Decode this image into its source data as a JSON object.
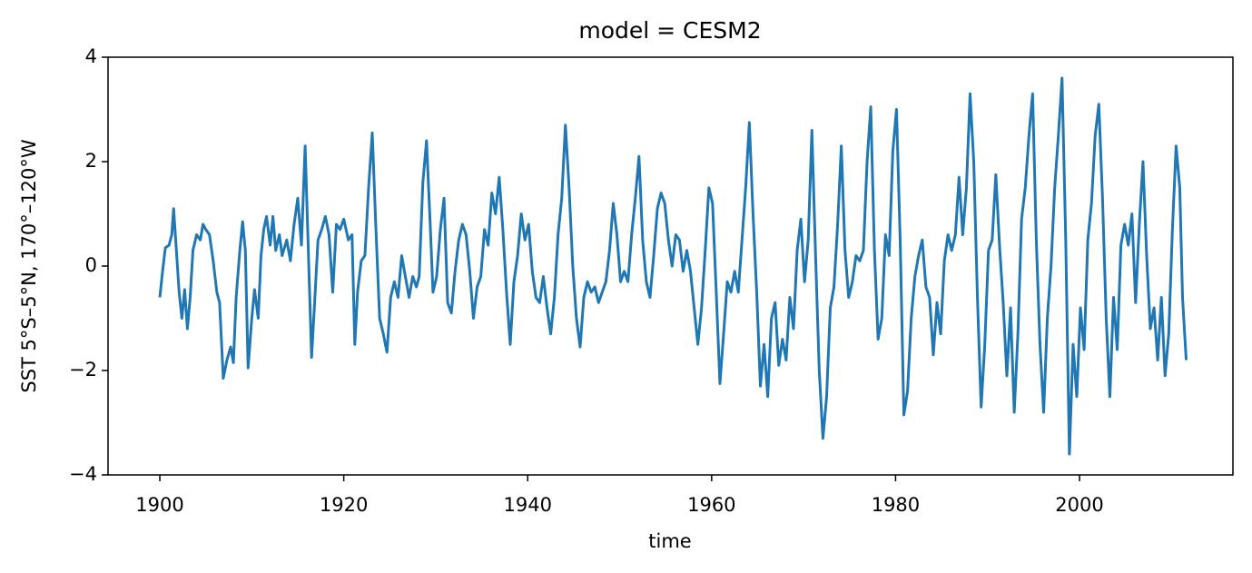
{
  "chart_data": {
    "type": "line",
    "title": "model = CESM2",
    "xlabel": "time",
    "ylabel": "SST 5°S–5°N, 170°–120°W",
    "color": "#1f77b4",
    "x": [
      1900.0,
      1900.3,
      1900.6,
      1901.0,
      1901.3,
      1901.5,
      1901.8,
      1902.1,
      1902.4,
      1902.7,
      1903.0,
      1903.3,
      1903.6,
      1904.0,
      1904.4,
      1904.7,
      1905.0,
      1905.4,
      1905.8,
      1906.2,
      1906.5,
      1906.9,
      1907.3,
      1907.7,
      1908.0,
      1908.3,
      1908.7,
      1909.0,
      1909.3,
      1909.6,
      1910.0,
      1910.3,
      1910.7,
      1911.0,
      1911.3,
      1911.6,
      1912.0,
      1912.3,
      1912.6,
      1913.0,
      1913.3,
      1913.8,
      1914.2,
      1914.6,
      1915.0,
      1915.4,
      1915.8,
      1916.2,
      1916.5,
      1916.8,
      1917.2,
      1917.6,
      1918.0,
      1918.4,
      1918.8,
      1919.2,
      1919.6,
      1920.0,
      1920.5,
      1920.9,
      1921.2,
      1921.5,
      1921.9,
      1922.3,
      1922.7,
      1923.1,
      1923.5,
      1923.9,
      1924.3,
      1924.7,
      1925.1,
      1925.5,
      1925.9,
      1926.3,
      1926.7,
      1927.1,
      1927.5,
      1927.9,
      1928.2,
      1928.6,
      1929.0,
      1929.4,
      1929.7,
      1930.1,
      1930.5,
      1930.9,
      1931.3,
      1931.7,
      1932.1,
      1932.5,
      1932.9,
      1933.3,
      1933.7,
      1934.1,
      1934.5,
      1934.9,
      1935.3,
      1935.7,
      1936.1,
      1936.5,
      1936.9,
      1937.3,
      1937.7,
      1938.1,
      1938.5,
      1938.9,
      1939.3,
      1939.7,
      1940.1,
      1940.5,
      1940.9,
      1941.3,
      1941.7,
      1942.1,
      1942.5,
      1942.9,
      1943.3,
      1943.7,
      1944.1,
      1944.5,
      1944.9,
      1945.3,
      1945.7,
      1946.1,
      1946.5,
      1946.9,
      1947.3,
      1947.7,
      1948.1,
      1948.5,
      1948.9,
      1949.3,
      1949.7,
      1950.1,
      1950.5,
      1950.9,
      1951.3,
      1951.7,
      1952.1,
      1952.5,
      1952.9,
      1953.3,
      1953.7,
      1954.1,
      1954.5,
      1954.9,
      1955.3,
      1955.7,
      1956.1,
      1956.5,
      1956.9,
      1957.3,
      1957.7,
      1958.1,
      1958.5,
      1958.9,
      1959.3,
      1959.7,
      1960.1,
      1960.5,
      1960.9,
      1961.3,
      1961.7,
      1962.1,
      1962.5,
      1962.9,
      1963.3,
      1963.7,
      1964.1,
      1964.5,
      1964.9,
      1965.3,
      1965.7,
      1966.1,
      1966.5,
      1966.9,
      1967.3,
      1967.7,
      1968.1,
      1968.5,
      1968.9,
      1969.3,
      1969.7,
      1970.1,
      1970.5,
      1970.9,
      1971.3,
      1971.7,
      1972.1,
      1972.5,
      1972.9,
      1973.3,
      1973.7,
      1974.1,
      1974.5,
      1974.9,
      1975.3,
      1975.7,
      1976.1,
      1976.5,
      1976.9,
      1977.3,
      1977.7,
      1978.1,
      1978.5,
      1978.9,
      1979.3,
      1979.7,
      1980.1,
      1980.5,
      1980.9,
      1981.3,
      1981.7,
      1982.1,
      1982.5,
      1982.9,
      1983.3,
      1983.7,
      1984.1,
      1984.5,
      1984.9,
      1985.3,
      1985.7,
      1986.1,
      1986.5,
      1986.9,
      1987.3,
      1987.7,
      1988.1,
      1988.5,
      1988.9,
      1989.3,
      1989.7,
      1990.1,
      1990.5,
      1990.9,
      1991.3,
      1991.7,
      1992.1,
      1992.5,
      1992.9,
      1993.3,
      1993.7,
      1994.1,
      1994.5,
      1994.9,
      1995.3,
      1995.7,
      1996.1,
      1996.5,
      1996.9,
      1997.3,
      1997.7,
      1998.1,
      1998.5,
      1998.9,
      1999.3,
      1999.7,
      2000.1,
      2000.5,
      2000.9,
      2001.3,
      2001.7,
      2002.1,
      2002.5,
      2002.9,
      2003.3,
      2003.7,
      2004.1,
      2004.5,
      2004.9,
      2005.3,
      2005.7,
      2006.1,
      2006.5,
      2006.9,
      2007.3,
      2007.7,
      2008.1,
      2008.5,
      2008.9,
      2009.3,
      2009.7,
      2010.1,
      2010.5,
      2010.9,
      2011.2,
      2011.6
    ],
    "values": [
      -0.6,
      -0.1,
      0.35,
      0.4,
      0.6,
      1.1,
      0.3,
      -0.5,
      -1.0,
      -0.45,
      -1.2,
      -0.6,
      0.3,
      0.6,
      0.5,
      0.8,
      0.7,
      0.6,
      0.1,
      -0.5,
      -0.7,
      -2.15,
      -1.8,
      -1.55,
      -1.85,
      -0.6,
      0.3,
      0.85,
      0.3,
      -1.95,
      -1.0,
      -0.45,
      -1.0,
      0.2,
      0.7,
      0.95,
      0.4,
      0.95,
      0.3,
      0.6,
      0.2,
      0.5,
      0.1,
      0.8,
      1.3,
      0.4,
      2.3,
      0.0,
      -1.75,
      -0.8,
      0.5,
      0.7,
      0.95,
      0.6,
      -0.5,
      0.8,
      0.7,
      0.9,
      0.5,
      0.6,
      -1.5,
      -0.5,
      0.1,
      0.2,
      1.5,
      2.55,
      0.7,
      -1.0,
      -1.3,
      -1.65,
      -0.6,
      -0.3,
      -0.6,
      0.2,
      -0.2,
      -0.6,
      -0.2,
      -0.4,
      -0.2,
      1.6,
      2.4,
      0.8,
      -0.5,
      -0.2,
      0.7,
      1.3,
      -0.7,
      -0.9,
      -0.1,
      0.5,
      0.8,
      0.6,
      -0.1,
      -1.0,
      -0.4,
      -0.2,
      0.7,
      0.4,
      1.4,
      1.0,
      1.7,
      0.7,
      -0.5,
      -1.5,
      -0.3,
      0.2,
      1.0,
      0.5,
      0.8,
      -0.1,
      -0.6,
      -0.7,
      -0.2,
      -0.8,
      -1.3,
      -0.6,
      0.6,
      1.3,
      2.7,
      1.5,
      0.0,
      -1.0,
      -1.55,
      -0.6,
      -0.3,
      -0.5,
      -0.4,
      -0.7,
      -0.5,
      -0.3,
      0.3,
      1.2,
      0.6,
      -0.3,
      -0.1,
      -0.3,
      0.6,
      1.3,
      2.1,
      0.5,
      -0.3,
      -0.6,
      0.2,
      1.1,
      1.4,
      1.2,
      0.5,
      0.0,
      0.6,
      0.5,
      -0.1,
      0.3,
      -0.1,
      -0.8,
      -1.5,
      -0.8,
      0.3,
      1.5,
      1.2,
      -0.5,
      -2.25,
      -1.3,
      -0.3,
      -0.5,
      -0.1,
      -0.5,
      0.5,
      1.5,
      2.75,
      1.0,
      -0.5,
      -2.3,
      -1.5,
      -2.5,
      -1.0,
      -0.7,
      -1.9,
      -1.4,
      -1.8,
      -0.6,
      -1.2,
      0.3,
      0.9,
      -0.3,
      0.5,
      2.6,
      0.2,
      -2.0,
      -3.3,
      -2.5,
      -0.8,
      -0.4,
      0.8,
      2.3,
      0.3,
      -0.6,
      -0.3,
      0.2,
      0.1,
      0.3,
      2.0,
      3.05,
      0.3,
      -1.4,
      -1.0,
      0.6,
      0.2,
      2.2,
      3.0,
      0.5,
      -2.85,
      -2.4,
      -1.0,
      -0.2,
      0.2,
      0.5,
      -0.4,
      -0.6,
      -1.7,
      -0.7,
      -1.3,
      0.1,
      0.6,
      0.3,
      0.6,
      1.7,
      0.6,
      1.5,
      3.3,
      2.0,
      -0.6,
      -2.7,
      -1.5,
      0.3,
      0.5,
      1.75,
      0.4,
      -0.7,
      -2.1,
      -0.8,
      -2.8,
      -1.3,
      0.9,
      1.5,
      2.5,
      3.3,
      0.5,
      -1.5,
      -2.8,
      -1.0,
      0.0,
      1.5,
      2.5,
      3.6,
      0.5,
      -3.6,
      -1.5,
      -2.5,
      -0.8,
      -1.6,
      0.5,
      1.2,
      2.5,
      3.1,
      1.3,
      -1.0,
      -2.5,
      -0.6,
      -1.6,
      0.4,
      0.8,
      0.4,
      1.0,
      -0.7,
      0.8,
      2.0,
      0.2,
      -1.2,
      -0.8,
      -1.8,
      -0.6,
      -2.1,
      -1.3,
      0.7,
      2.3,
      1.5,
      -0.6,
      -1.8
    ],
    "xlim": [
      1894.37,
      2016.68
    ],
    "xticks": [
      1900,
      1920,
      1940,
      1960,
      1980,
      2000
    ],
    "ylim": [
      -4,
      4
    ],
    "yticks": [
      {
        "value": -4,
        "label": "−4"
      },
      {
        "value": -2,
        "label": "−2"
      },
      0,
      2,
      4
    ]
  }
}
